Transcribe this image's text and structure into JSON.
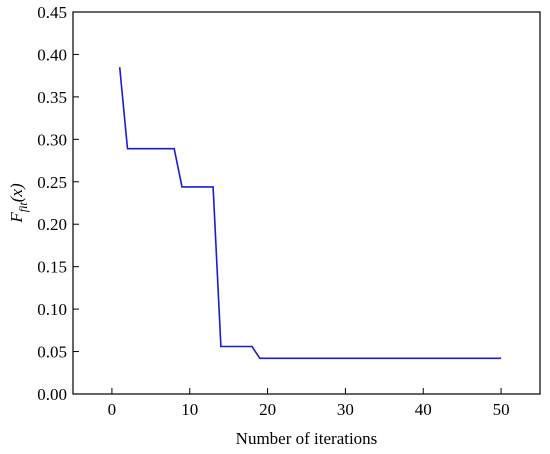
{
  "chart_data": {
    "type": "line",
    "xlabel": "Number of iterations",
    "ylabel_main": "F",
    "ylabel_sub": "fit",
    "ylabel_arg": "(x)",
    "xlim": [
      -5,
      55
    ],
    "ylim": [
      0.0,
      0.45
    ],
    "x_ticks": [
      0,
      10,
      20,
      30,
      40,
      50
    ],
    "y_ticks": [
      0.0,
      0.05,
      0.1,
      0.15,
      0.2,
      0.25,
      0.3,
      0.35,
      0.4,
      0.45
    ],
    "x_tick_labels": [
      "0",
      "10",
      "20",
      "30",
      "40",
      "50"
    ],
    "y_tick_labels": [
      "0.00",
      "0.05",
      "0.10",
      "0.15",
      "0.20",
      "0.25",
      "0.30",
      "0.35",
      "0.40",
      "0.45"
    ],
    "series": [
      {
        "color": "#1a1adc",
        "x": [
          1,
          2,
          8,
          9,
          13,
          14,
          18,
          19,
          50
        ],
        "y": [
          0.385,
          0.289,
          0.289,
          0.244,
          0.244,
          0.056,
          0.056,
          0.042,
          0.042
        ]
      }
    ],
    "grid": false,
    "legend": false
  }
}
